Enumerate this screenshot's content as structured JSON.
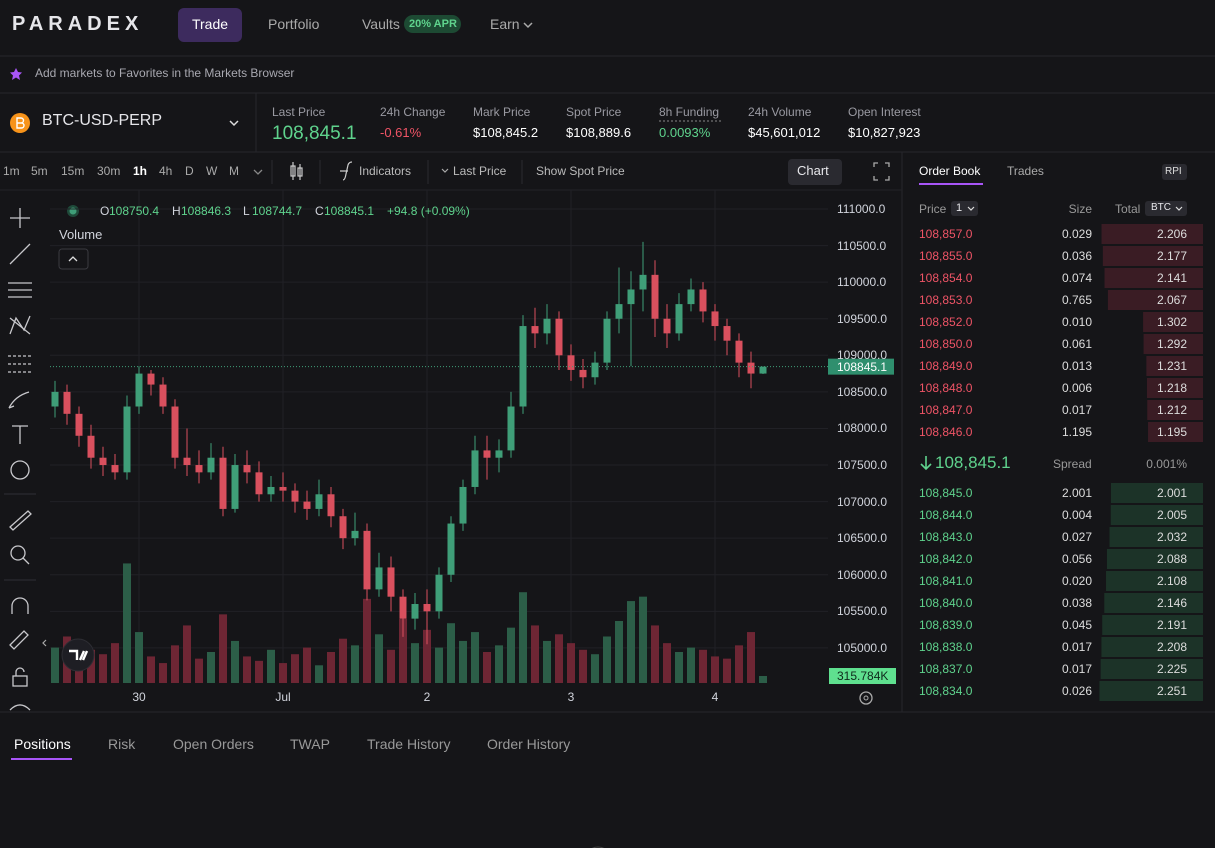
{
  "nav": {
    "logo": "PARADEX",
    "tabs": [
      "Trade",
      "Portfolio",
      "Vaults",
      "Earn"
    ],
    "apr_badge": "20% APR"
  },
  "banner": "Add markets to Favorites in the Markets Browser",
  "market": {
    "symbol": "BTC-USD-PERP",
    "stats": [
      {
        "label": "Last Price",
        "value": "108,845.1"
      },
      {
        "label": "24h Change",
        "value": "-0.61%"
      },
      {
        "label": "Mark Price",
        "value": "$108,845.2"
      },
      {
        "label": "Spot Price",
        "value": "$108,889.6"
      },
      {
        "label": "8h Funding",
        "value": "0.0093%"
      },
      {
        "label": "24h Volume",
        "value": "$45,601,012"
      },
      {
        "label": "Open Interest",
        "value": "$10,827,923"
      }
    ]
  },
  "toolbar": {
    "intervals": [
      "1m",
      "5m",
      "15m",
      "30m",
      "1h",
      "4h",
      "D",
      "W",
      "M"
    ],
    "indicators": "Indicators",
    "price_source": "Last Price",
    "spot_toggle": "Show Spot Price",
    "chart_button": "Chart"
  },
  "chart_data": {
    "type": "candlestick",
    "legend_keys": [
      "O",
      "H",
      "L",
      "C"
    ],
    "change": "+94.8 (+0.09%)",
    "volume_title": "Volume",
    "categories": [
      null,
      null,
      null,
      null,
      null,
      null,
      null,
      "30",
      null,
      null,
      null,
      null,
      null,
      null,
      null,
      null,
      null,
      null,
      null,
      "Jul",
      null,
      null,
      null,
      null,
      null,
      null,
      null,
      null,
      null,
      null,
      null,
      "2",
      null,
      null,
      null,
      null,
      null,
      null,
      null,
      null,
      null,
      null,
      null,
      "3",
      null,
      null,
      null,
      null,
      null,
      null,
      null,
      null,
      null,
      null,
      null,
      "4",
      null,
      null,
      null,
      null
    ],
    "open": [
      108300,
      108500,
      108200,
      107900,
      107600,
      107500,
      107400,
      108300,
      108750,
      108600,
      108300,
      107600,
      107500,
      107400,
      107600,
      106900,
      107500,
      107400,
      107100,
      107200,
      107150,
      107000,
      106900,
      107100,
      106800,
      106500,
      106600,
      105800,
      106100,
      105700,
      105400,
      105600,
      105500,
      106000,
      106700,
      107200,
      107700,
      107600,
      107700,
      108300,
      109400,
      109300,
      109500,
      109000,
      108800,
      108700,
      108900,
      109500,
      109700,
      109900,
      110100,
      109500,
      109300,
      109700,
      109900,
      109600,
      109400,
      109200,
      108900,
      108750.4
    ],
    "high": [
      108650,
      108600,
      108300,
      108050,
      107750,
      107650,
      108450,
      108850,
      108800,
      108700,
      108400,
      108000,
      107700,
      107800,
      107750,
      107650,
      107700,
      107550,
      107350,
      107400,
      107250,
      107150,
      107300,
      107200,
      106900,
      106850,
      106700,
      106300,
      106250,
      105800,
      105750,
      105800,
      106100,
      106800,
      107300,
      107900,
      107900,
      107850,
      108500,
      109550,
      109650,
      109700,
      109600,
      109150,
      108950,
      109050,
      109600,
      110200,
      110150,
      110550,
      110300,
      109700,
      109850,
      110050,
      110000,
      109700,
      109500,
      109300,
      109050,
      108846.3
    ],
    "low": [
      108150,
      108050,
      107750,
      107450,
      107350,
      107300,
      107300,
      108200,
      108450,
      108200,
      107450,
      107350,
      107250,
      107300,
      106800,
      106850,
      107250,
      107000,
      107000,
      107000,
      106850,
      106750,
      106800,
      106650,
      106350,
      106400,
      105650,
      105700,
      105500,
      105150,
      105250,
      105050,
      105400,
      105900,
      106600,
      107100,
      107300,
      107400,
      107600,
      108200,
      109100,
      109150,
      108800,
      108650,
      108550,
      108600,
      108800,
      109300,
      108850,
      109600,
      109250,
      109100,
      109200,
      109600,
      109450,
      109200,
      109000,
      108700,
      108550,
      108744.7
    ],
    "close": [
      108500,
      108200,
      107900,
      107600,
      107500,
      107400,
      108300,
      108750,
      108600,
      108300,
      107600,
      107500,
      107400,
      107600,
      106900,
      107500,
      107400,
      107100,
      107200,
      107150,
      107000,
      106900,
      107100,
      106800,
      106500,
      106600,
      105800,
      106100,
      105700,
      105400,
      105600,
      105500,
      106000,
      106700,
      107200,
      107700,
      107600,
      107700,
      108300,
      109400,
      109300,
      109500,
      109000,
      108800,
      108700,
      108900,
      109500,
      109700,
      109900,
      110100,
      109500,
      109300,
      109700,
      109900,
      109600,
      109400,
      109200,
      108900,
      108750.4,
      108845.1
    ],
    "volume": [
      1600000,
      2100000,
      900000,
      1500000,
      1300000,
      1800000,
      5400000,
      2300000,
      1200000,
      900000,
      1700000,
      2600000,
      1100000,
      1400000,
      3100000,
      1900000,
      1200000,
      1000000,
      1500000,
      900000,
      1300000,
      1600000,
      800000,
      1400000,
      2000000,
      1700000,
      3800000,
      2200000,
      1500000,
      2900000,
      1800000,
      2400000,
      1600000,
      2700000,
      1900000,
      2300000,
      1400000,
      1700000,
      2500000,
      4100000,
      2600000,
      1900000,
      2200000,
      1800000,
      1500000,
      1300000,
      2100000,
      2800000,
      3700000,
      3900000,
      2600000,
      1800000,
      1400000,
      1600000,
      1500000,
      1200000,
      1100000,
      1700000,
      2300000,
      315784
    ],
    "volume_label": "315.784K",
    "ylim": [
      104520,
      111260
    ],
    "vlim": [
      0,
      7000000
    ],
    "yticks": [
      {
        "value": 105000,
        "label": "105000.0"
      },
      {
        "value": 105500,
        "label": "105500.0"
      },
      {
        "value": 106000,
        "label": "106000.0"
      },
      {
        "value": 106500,
        "label": "106500.0"
      },
      {
        "value": 107000,
        "label": "107000.0"
      },
      {
        "value": 107500,
        "label": "107500.0"
      },
      {
        "value": 108000,
        "label": "108000.0"
      },
      {
        "value": 108500,
        "label": "108500.0"
      },
      {
        "value": 109000,
        "label": "109000.0"
      },
      {
        "value": 109500,
        "label": "109500.0"
      },
      {
        "value": 110000,
        "label": "110000.0"
      },
      {
        "value": 110500,
        "label": "110500.0"
      },
      {
        "value": 111000,
        "label": "111000.0"
      }
    ],
    "up_color": "#3f9e78",
    "down_color": "#d9505e",
    "grid": true
  },
  "order_book": {
    "tabs": [
      "Order Book",
      "Trades"
    ],
    "rpi": "RPI",
    "headers": {
      "price": "Price",
      "grouping": "1",
      "size": "Size",
      "total": "Total",
      "unit": "BTC"
    },
    "asks": [
      {
        "price": "108,857.0",
        "size": "0.029",
        "total": 2.206
      },
      {
        "price": "108,855.0",
        "size": "0.036",
        "total": 2.177
      },
      {
        "price": "108,854.0",
        "size": "0.074",
        "total": 2.141
      },
      {
        "price": "108,853.0",
        "size": "0.765",
        "total": 2.067
      },
      {
        "price": "108,852.0",
        "size": "0.010",
        "total": 1.302
      },
      {
        "price": "108,850.0",
        "size": "0.061",
        "total": 1.292
      },
      {
        "price": "108,849.0",
        "size": "0.013",
        "total": 1.231
      },
      {
        "price": "108,848.0",
        "size": "0.006",
        "total": 1.218
      },
      {
        "price": "108,847.0",
        "size": "0.017",
        "total": 1.212
      },
      {
        "price": "108,846.0",
        "size": "1.195",
        "total": 1.195
      }
    ],
    "mid_price": "108,845.1",
    "spread_label": "Spread",
    "spread": "0.001%",
    "bids": [
      {
        "price": "108,845.0",
        "size": "2.001",
        "total": 2.001
      },
      {
        "price": "108,844.0",
        "size": "0.004",
        "total": 2.005
      },
      {
        "price": "108,843.0",
        "size": "0.027",
        "total": 2.032
      },
      {
        "price": "108,842.0",
        "size": "0.056",
        "total": 2.088
      },
      {
        "price": "108,841.0",
        "size": "0.020",
        "total": 2.108
      },
      {
        "price": "108,840.0",
        "size": "0.038",
        "total": 2.146
      },
      {
        "price": "108,839.0",
        "size": "0.045",
        "total": 2.191
      },
      {
        "price": "108,838.0",
        "size": "0.017",
        "total": 2.208
      },
      {
        "price": "108,837.0",
        "size": "0.017",
        "total": 2.225
      },
      {
        "price": "108,834.0",
        "size": "0.026",
        "total": 2.251
      }
    ]
  },
  "bottom_tabs": [
    "Positions",
    "Risk",
    "Open Orders",
    "TWAP",
    "Trade History",
    "Order History"
  ]
}
